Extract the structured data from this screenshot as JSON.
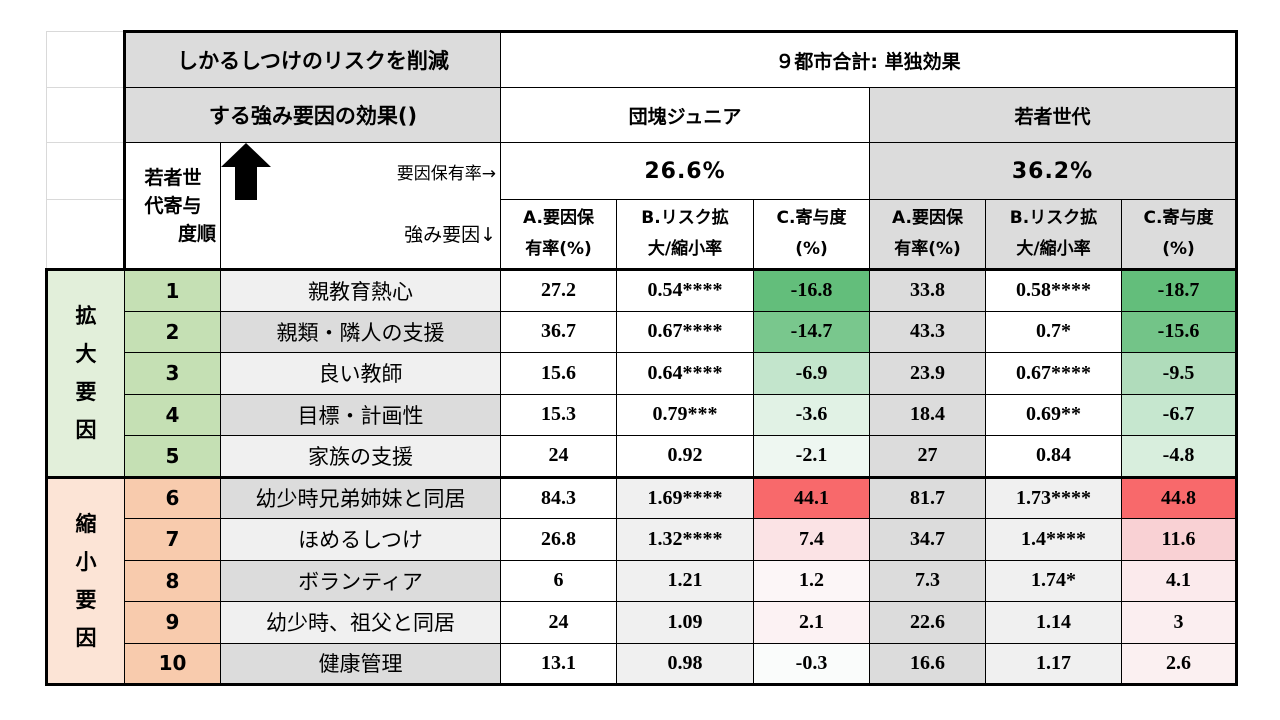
{
  "title": {
    "line1": "しかるしつけのリスクを削減",
    "line2": "する強み要因の効果()"
  },
  "scope": "９都市合計: 単独効果",
  "groups": [
    {
      "name": "団塊ジュニア",
      "rate": "26.6%"
    },
    {
      "name": "若者世代",
      "rate": "36.2%"
    }
  ],
  "rank_header": {
    "line1": "若者世",
    "line2": "代寄与",
    "line3": "度順"
  },
  "factor_rate_label": "要因保有率→",
  "strength_label": "強み要因↓",
  "columns": [
    {
      "line1": "A.要因保",
      "line2": "有率(%)"
    },
    {
      "line1": "B.リスク拡",
      "line2": "大/縮小率"
    },
    {
      "line1": "C.寄与度",
      "line2": "(%)"
    }
  ],
  "side_labels": {
    "expand": [
      "拡",
      "大",
      "要",
      "因"
    ],
    "shrink": [
      "縮",
      "小",
      "要",
      "因"
    ]
  },
  "colors": {
    "green_rank": "#c5e0b4",
    "orange_rank": "#f8cbad",
    "green_strong": "#63be7b",
    "red_strong": "#f8696b",
    "grey_header": "#dcdcdc"
  },
  "rows": [
    {
      "rank": "1",
      "factor": "親教育熱心",
      "a1": "27.2",
      "b1": "0.54****",
      "c1": "-16.8",
      "a2": "33.8",
      "b2": "0.58****",
      "c2": "-18.7",
      "c1_color": "#63be7b",
      "c2_color": "#63be7b"
    },
    {
      "rank": "2",
      "factor": "親類・隣人の支援",
      "a1": "36.7",
      "b1": "0.67****",
      "c1": "-14.7",
      "a2": "43.3",
      "b2": "0.7*",
      "c2": "-15.6",
      "c1_color": "#79c78d",
      "c2_color": "#73c488"
    },
    {
      "rank": "3",
      "factor": "良い教師",
      "a1": "15.6",
      "b1": "0.64****",
      "c1": "-6.9",
      "a2": "23.9",
      "b2": "0.67****",
      "c2": "-9.5",
      "c1_color": "#c3e5cc",
      "c2_color": "#b0dcbb"
    },
    {
      "rank": "4",
      "factor": "目標・計画性",
      "a1": "15.3",
      "b1": "0.79***",
      "c1": "-3.6",
      "a2": "18.4",
      "b2": "0.69**",
      "c2": "-6.7",
      "c1_color": "#e1f2e5",
      "c2_color": "#c6e7cf"
    },
    {
      "rank": "5",
      "factor": "家族の支援",
      "a1": "24",
      "b1": "0.92",
      "c1": "-2.1",
      "a2": "27",
      "b2": "0.84",
      "c2": "-4.8",
      "c1_color": "#eef7f1",
      "c2_color": "#d8eedd"
    },
    {
      "rank": "6",
      "factor": "幼少時兄弟姉妹と同居",
      "a1": "84.3",
      "b1": "1.69****",
      "c1": "44.1",
      "a2": "81.7",
      "b2": "1.73****",
      "c2": "44.8",
      "c1_color": "#f8696b",
      "c2_color": "#f8696b"
    },
    {
      "rank": "7",
      "factor": "ほめるしつけ",
      "a1": "26.8",
      "b1": "1.32****",
      "c1": "7.4",
      "a2": "34.7",
      "b2": "1.4****",
      "c2": "11.6",
      "c1_color": "#fbe3e5",
      "c2_color": "#f9d1d4"
    },
    {
      "rank": "8",
      "factor": "ボランティア",
      "a1": "6",
      "b1": "1.21",
      "c1": "1.2",
      "a2": "7.3",
      "b2": "1.74*",
      "c2": "4.1",
      "c1_color": "#fcf6f7",
      "c2_color": "#fbeaec"
    },
    {
      "rank": "9",
      "factor": "幼少時、祖父と同居",
      "a1": "24",
      "b1": "1.09",
      "c1": "2.1",
      "a2": "22.6",
      "b2": "1.14",
      "c2": "3",
      "c1_color": "#fcf2f3",
      "c2_color": "#fbeef0"
    },
    {
      "rank": "10",
      "factor": "健康管理",
      "a1": "13.1",
      "b1": "0.98",
      "c1": "-0.3",
      "a2": "16.6",
      "b2": "1.17",
      "c2": "2.6",
      "c1_color": "#fafcfb",
      "c2_color": "#fbf0f1"
    }
  ]
}
